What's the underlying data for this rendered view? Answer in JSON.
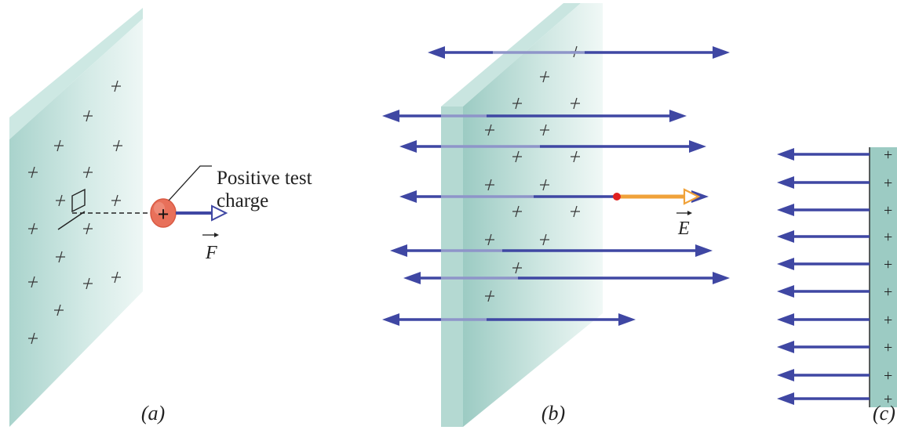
{
  "panel_a": {
    "label": "(a)",
    "test_charge_label_line1": "Positive test",
    "test_charge_label_line2": "charge",
    "charge_symbol": "+",
    "force_symbol": "F"
  },
  "panel_b": {
    "label": "(b)",
    "field_symbol": "E"
  },
  "panel_c": {
    "label": "(c)",
    "plate_charge_symbol": "+"
  },
  "colors": {
    "plate_face": "#cfe6e1",
    "plate_edge": "#9fccc4",
    "field_line": "#3f47a3",
    "field_vector": "#f0a23a",
    "test_charge_fill": "#e8705a",
    "dot_red": "#e02020"
  }
}
